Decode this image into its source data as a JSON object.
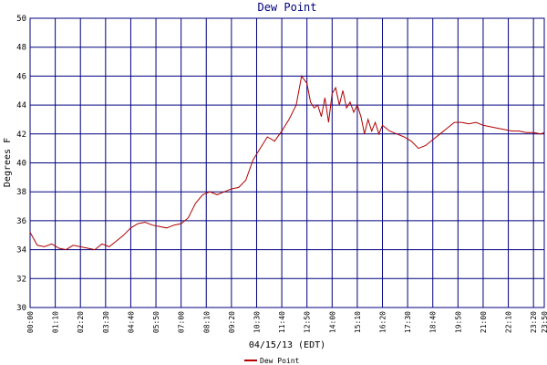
{
  "chart_data": {
    "type": "line",
    "title": "Dew Point",
    "x_label": "04/15/13 (EDT)",
    "y_label": "Degrees F",
    "x": [
      0,
      20,
      40,
      60,
      80,
      100,
      120,
      140,
      160,
      180,
      200,
      220,
      240,
      260,
      280,
      300,
      320,
      340,
      360,
      380,
      400,
      420,
      440,
      460,
      480,
      500,
      520,
      540,
      560,
      580,
      600,
      620,
      640,
      660,
      680,
      700,
      720,
      740,
      755,
      770,
      780,
      790,
      800,
      810,
      820,
      830,
      840,
      850,
      860,
      870,
      880,
      890,
      900,
      910,
      920,
      930,
      940,
      950,
      960,
      970,
      980,
      1000,
      1020,
      1040,
      1060,
      1080,
      1100,
      1120,
      1140,
      1160,
      1180,
      1200,
      1220,
      1240,
      1260,
      1280,
      1300,
      1320,
      1340,
      1360,
      1380,
      1400,
      1420,
      1430
    ],
    "series": [
      {
        "name": "Dew Point",
        "color": "#b00000",
        "values": [
          35.2,
          34.3,
          34.2,
          34.4,
          34.1,
          34.0,
          34.3,
          34.2,
          34.1,
          34.0,
          34.4,
          34.2,
          34.6,
          35.0,
          35.5,
          35.8,
          35.9,
          35.7,
          35.6,
          35.5,
          35.7,
          35.8,
          36.2,
          37.2,
          37.8,
          38.0,
          37.8,
          38.0,
          38.2,
          38.3,
          38.8,
          40.2,
          41.0,
          41.8,
          41.5,
          42.2,
          43.0,
          44.0,
          46.0,
          45.5,
          44.2,
          43.8,
          44.0,
          43.2,
          44.5,
          42.8,
          44.8,
          45.2,
          44.0,
          45.0,
          43.8,
          44.2,
          43.5,
          44.0,
          43.2,
          42.0,
          43.0,
          42.2,
          42.8,
          42.0,
          42.6,
          42.2,
          42.0,
          41.8,
          41.5,
          41.0,
          41.2,
          41.6,
          42.0,
          42.4,
          42.8,
          42.8,
          42.7,
          42.8,
          42.6,
          42.5,
          42.4,
          42.3,
          42.2,
          42.2,
          42.1,
          42.1,
          42.0,
          42.1
        ]
      }
    ],
    "xlim": [
      0,
      1430
    ],
    "xticks": [
      {
        "value": 0,
        "label": "00:00"
      },
      {
        "value": 70,
        "label": "01:10"
      },
      {
        "value": 140,
        "label": "02:20"
      },
      {
        "value": 210,
        "label": "03:30"
      },
      {
        "value": 280,
        "label": "04:40"
      },
      {
        "value": 350,
        "label": "05:50"
      },
      {
        "value": 420,
        "label": "07:00"
      },
      {
        "value": 490,
        "label": "08:10"
      },
      {
        "value": 560,
        "label": "09:20"
      },
      {
        "value": 630,
        "label": "10:30"
      },
      {
        "value": 700,
        "label": "11:40"
      },
      {
        "value": 770,
        "label": "12:50"
      },
      {
        "value": 840,
        "label": "14:00"
      },
      {
        "value": 910,
        "label": "15:10"
      },
      {
        "value": 980,
        "label": "16:20"
      },
      {
        "value": 1050,
        "label": "17:30"
      },
      {
        "value": 1120,
        "label": "18:40"
      },
      {
        "value": 1190,
        "label": "19:50"
      },
      {
        "value": 1260,
        "label": "21:00"
      },
      {
        "value": 1330,
        "label": "22:10"
      },
      {
        "value": 1400,
        "label": "23:20"
      },
      {
        "value": 1430,
        "label": "23:50"
      }
    ],
    "ylim": [
      30,
      50
    ],
    "yticks": [
      30,
      32,
      34,
      36,
      38,
      40,
      42,
      44,
      46,
      48,
      50
    ],
    "grid": true
  }
}
